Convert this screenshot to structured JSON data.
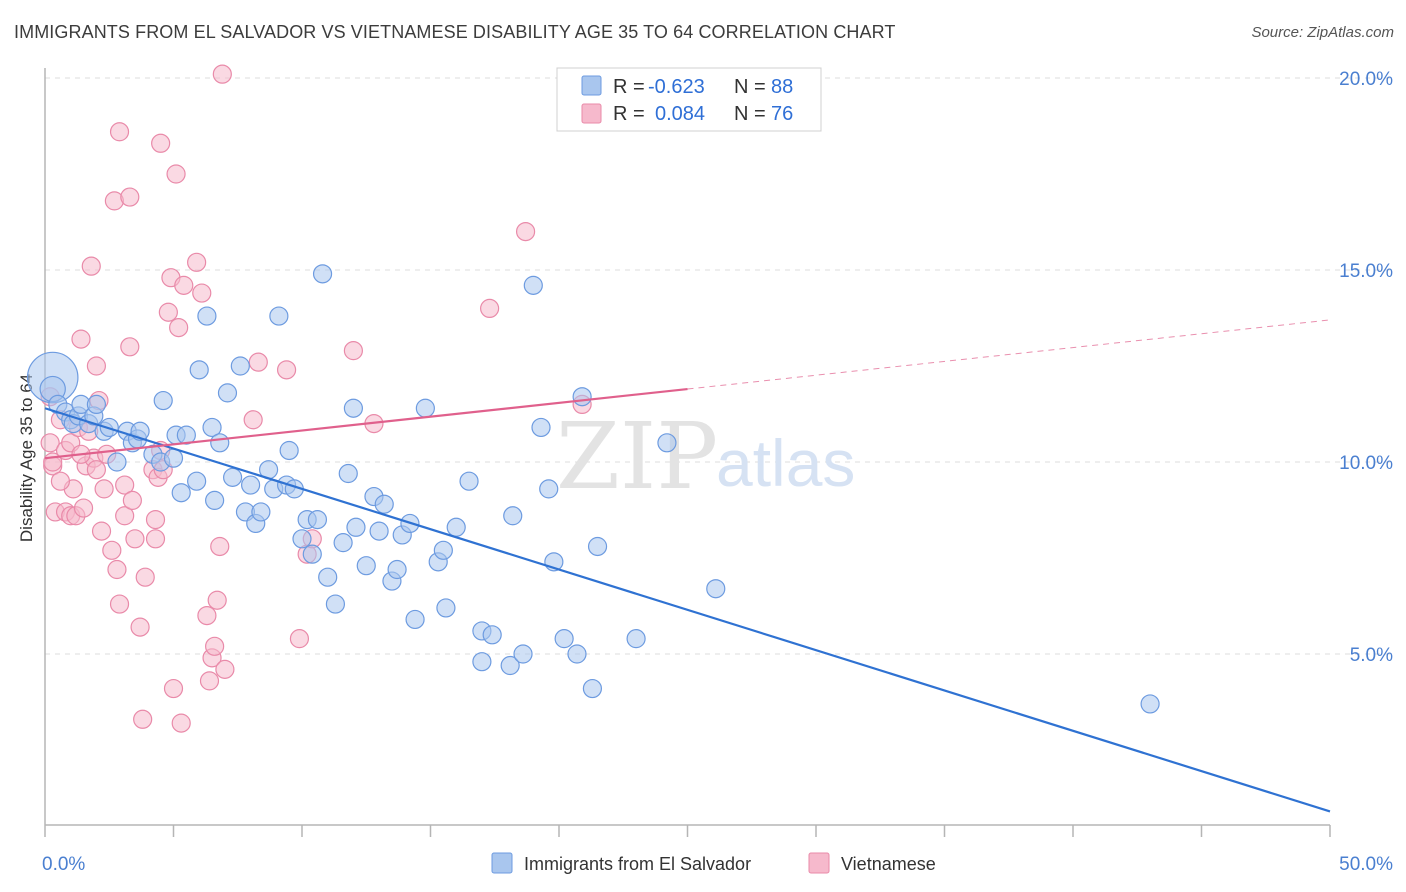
{
  "header": {
    "title": "IMMIGRANTS FROM EL SALVADOR VS VIETNAMESE DISABILITY AGE 35 TO 64 CORRELATION CHART",
    "source": "Source: ZipAtlas.com"
  },
  "watermark": {
    "zip": "ZIP",
    "atlas": "atlas"
  },
  "legend": {
    "rows": [
      {
        "r_label": "R =",
        "r_value": "-0.623",
        "n_label": "N =",
        "n_value": "88"
      },
      {
        "r_label": "R =",
        "r_value": "0.084",
        "n_label": "N =",
        "n_value": "76"
      }
    ]
  },
  "bottom_legend": {
    "items": [
      "Immigrants from El Salvador",
      "Vietnamese"
    ]
  },
  "colors": {
    "blue_fill": "#a9c6ee",
    "blue_stroke": "#6d9be0",
    "blue_line": "#2f72d2",
    "pink_fill": "#f6b9cc",
    "pink_stroke": "#e98aa9",
    "pink_line": "#e0608c",
    "grid": "#dcdcdc",
    "axis": "#b5b5b5",
    "tick_text": "#4a7fd0"
  },
  "chart_data": {
    "type": "scatter",
    "title": "IMMIGRANTS FROM EL SALVADOR VS VIETNAMESE DISABILITY AGE 35 TO 64 CORRELATION CHART",
    "xlabel": "",
    "ylabel": "Disability Age 35 to 64",
    "xlim": [
      0,
      50
    ],
    "ylim": [
      0,
      20.5
    ],
    "x_tick_labels": [
      "0.0%",
      "50.0%"
    ],
    "y_ticks": [
      5,
      10,
      15,
      20
    ],
    "y_tick_labels": [
      "5.0%",
      "10.0%",
      "15.0%",
      "20.0%"
    ],
    "grid": true,
    "legend_position": "top-center",
    "series": [
      {
        "name": "Immigrants from El Salvador",
        "color": "#a9c6ee",
        "R": -0.623,
        "N": 88,
        "trend": {
          "x": [
            0,
            50
          ],
          "y": [
            11.4,
            0.9
          ]
        },
        "points": [
          [
            0.3,
            12.2,
            2.8
          ],
          [
            0.3,
            11.9,
            1.4
          ],
          [
            0.5,
            11.5,
            1
          ],
          [
            0.8,
            11.3,
            1
          ],
          [
            1.0,
            11.1,
            1
          ],
          [
            1.1,
            11.0,
            1
          ],
          [
            1.3,
            11.2,
            1
          ],
          [
            1.4,
            11.5,
            1
          ],
          [
            1.7,
            11.0,
            1
          ],
          [
            1.9,
            11.2,
            1
          ],
          [
            2.0,
            11.5,
            1
          ],
          [
            2.3,
            10.8,
            1
          ],
          [
            2.5,
            10.9,
            1
          ],
          [
            2.8,
            10.0,
            1
          ],
          [
            3.2,
            10.8,
            1
          ],
          [
            3.4,
            10.5,
            1
          ],
          [
            3.6,
            10.6,
            1
          ],
          [
            3.7,
            10.8,
            1
          ],
          [
            4.2,
            10.2,
            1
          ],
          [
            4.5,
            10.0,
            1
          ],
          [
            4.6,
            11.6,
            1
          ],
          [
            5.0,
            10.1,
            1
          ],
          [
            5.1,
            10.7,
            1
          ],
          [
            5.3,
            9.2,
            1
          ],
          [
            5.5,
            10.7,
            1
          ],
          [
            5.9,
            9.5,
            1
          ],
          [
            6.0,
            12.4,
            1
          ],
          [
            6.3,
            13.8,
            1
          ],
          [
            6.5,
            10.9,
            1
          ],
          [
            6.6,
            9.0,
            1
          ],
          [
            6.8,
            10.5,
            1
          ],
          [
            7.1,
            11.8,
            1
          ],
          [
            7.3,
            9.6,
            1
          ],
          [
            7.6,
            12.5,
            1
          ],
          [
            7.8,
            8.7,
            1
          ],
          [
            8.0,
            9.4,
            1
          ],
          [
            8.2,
            8.4,
            1
          ],
          [
            8.4,
            8.7,
            1
          ],
          [
            8.7,
            9.8,
            1
          ],
          [
            8.9,
            9.3,
            1
          ],
          [
            9.1,
            13.8,
            1
          ],
          [
            9.4,
            9.4,
            1
          ],
          [
            9.5,
            10.3,
            1
          ],
          [
            9.7,
            9.3,
            1
          ],
          [
            10.0,
            8.0,
            1
          ],
          [
            10.2,
            8.5,
            1
          ],
          [
            10.4,
            7.6,
            1
          ],
          [
            10.6,
            8.5,
            1
          ],
          [
            10.8,
            14.9,
            1
          ],
          [
            11.0,
            7.0,
            1
          ],
          [
            11.3,
            6.3,
            1
          ],
          [
            11.6,
            7.9,
            1
          ],
          [
            11.8,
            9.7,
            1
          ],
          [
            12.1,
            8.3,
            1
          ],
          [
            12.0,
            11.4,
            1
          ],
          [
            12.5,
            7.3,
            1
          ],
          [
            12.8,
            9.1,
            1
          ],
          [
            13.0,
            8.2,
            1
          ],
          [
            13.2,
            8.9,
            1
          ],
          [
            13.5,
            6.9,
            1
          ],
          [
            13.7,
            7.2,
            1
          ],
          [
            13.9,
            8.1,
            1
          ],
          [
            14.2,
            8.4,
            1
          ],
          [
            14.4,
            5.9,
            1
          ],
          [
            14.8,
            11.4,
            1
          ],
          [
            15.3,
            7.4,
            1
          ],
          [
            15.5,
            7.7,
            1
          ],
          [
            15.6,
            6.2,
            1
          ],
          [
            16.0,
            8.3,
            1
          ],
          [
            16.5,
            9.5,
            1
          ],
          [
            17.0,
            5.6,
            1
          ],
          [
            17.0,
            4.8,
            1
          ],
          [
            17.4,
            5.5,
            1
          ],
          [
            18.1,
            4.7,
            1
          ],
          [
            18.2,
            8.6,
            1
          ],
          [
            18.6,
            5.0,
            1
          ],
          [
            19.0,
            14.6,
            1
          ],
          [
            19.6,
            9.3,
            1
          ],
          [
            19.3,
            10.9,
            1
          ],
          [
            19.8,
            7.4,
            1
          ],
          [
            20.2,
            5.4,
            1
          ],
          [
            20.7,
            5.0,
            1
          ],
          [
            20.9,
            11.7,
            1
          ],
          [
            21.3,
            4.1,
            1
          ],
          [
            21.5,
            7.8,
            1
          ],
          [
            23.0,
            5.4,
            1
          ],
          [
            24.2,
            10.5,
            1
          ],
          [
            26.1,
            6.7,
            1
          ],
          [
            43.0,
            3.7,
            1
          ]
        ]
      },
      {
        "name": "Vietnamese",
        "color": "#f6b9cc",
        "R": 0.084,
        "N": 76,
        "trend": {
          "x": [
            0,
            25
          ],
          "y": [
            10.1,
            11.9
          ]
        },
        "trend_dashed": {
          "x": [
            25,
            50
          ],
          "y": [
            11.9,
            13.7
          ]
        },
        "points": [
          [
            0.2,
            11.7,
            1
          ],
          [
            0.2,
            10.5,
            1
          ],
          [
            0.3,
            9.9,
            1
          ],
          [
            0.3,
            10.0,
            1
          ],
          [
            0.4,
            8.7,
            1
          ],
          [
            0.6,
            11.1,
            1
          ],
          [
            0.8,
            10.3,
            1
          ],
          [
            0.8,
            8.7,
            1
          ],
          [
            1.0,
            8.6,
            1
          ],
          [
            1.0,
            10.5,
            1
          ],
          [
            1.1,
            9.3,
            1
          ],
          [
            1.2,
            8.6,
            1
          ],
          [
            1.3,
            10.9,
            1
          ],
          [
            1.4,
            13.2,
            1
          ],
          [
            1.5,
            8.8,
            1
          ],
          [
            1.6,
            9.9,
            1
          ],
          [
            1.7,
            10.8,
            1
          ],
          [
            1.8,
            15.1,
            1
          ],
          [
            1.9,
            10.1,
            1
          ],
          [
            2.0,
            9.8,
            1
          ],
          [
            2.0,
            12.5,
            1
          ],
          [
            2.1,
            11.6,
            1
          ],
          [
            2.2,
            8.2,
            1
          ],
          [
            2.3,
            9.3,
            1
          ],
          [
            2.4,
            10.2,
            1
          ],
          [
            2.6,
            7.7,
            1
          ],
          [
            2.7,
            16.8,
            1
          ],
          [
            2.8,
            7.2,
            1
          ],
          [
            2.9,
            18.6,
            1
          ],
          [
            2.9,
            6.3,
            1
          ],
          [
            3.1,
            8.6,
            1
          ],
          [
            3.1,
            9.4,
            1
          ],
          [
            3.3,
            16.9,
            1
          ],
          [
            3.4,
            9.0,
            1
          ],
          [
            3.5,
            8.0,
            1
          ],
          [
            3.7,
            5.7,
            1
          ],
          [
            3.8,
            3.3,
            1
          ],
          [
            3.9,
            7.0,
            1
          ],
          [
            4.2,
            9.8,
            1
          ],
          [
            4.3,
            8.5,
            1
          ],
          [
            4.3,
            8.0,
            1
          ],
          [
            4.4,
            9.6,
            1
          ],
          [
            4.5,
            10.3,
            1
          ],
          [
            4.5,
            18.3,
            1
          ],
          [
            4.6,
            9.8,
            1
          ],
          [
            4.8,
            13.9,
            1
          ],
          [
            4.9,
            14.8,
            1
          ],
          [
            5.0,
            4.1,
            1
          ],
          [
            5.1,
            17.5,
            1
          ],
          [
            5.2,
            13.5,
            1
          ],
          [
            5.3,
            3.2,
            1
          ],
          [
            5.4,
            14.6,
            1
          ],
          [
            5.9,
            15.2,
            1
          ],
          [
            6.1,
            14.4,
            1
          ],
          [
            6.3,
            6.0,
            1
          ],
          [
            6.4,
            4.3,
            1
          ],
          [
            6.5,
            4.9,
            1
          ],
          [
            6.6,
            5.2,
            1
          ],
          [
            6.7,
            6.4,
            1
          ],
          [
            6.8,
            7.8,
            1
          ],
          [
            6.9,
            20.1,
            1
          ],
          [
            7.0,
            4.6,
            1
          ],
          [
            8.1,
            11.1,
            1
          ],
          [
            8.3,
            12.6,
            1
          ],
          [
            9.4,
            12.4,
            1
          ],
          [
            9.9,
            5.4,
            1
          ],
          [
            10.2,
            7.6,
            1
          ],
          [
            10.4,
            8.0,
            1
          ],
          [
            12.0,
            12.9,
            1
          ],
          [
            12.8,
            11.0,
            1
          ],
          [
            17.3,
            14.0,
            1
          ],
          [
            18.7,
            16.0,
            1
          ],
          [
            20.9,
            11.5,
            1
          ],
          [
            3.3,
            13.0,
            1
          ],
          [
            0.6,
            9.5,
            1
          ],
          [
            1.4,
            10.2,
            1
          ]
        ]
      }
    ]
  }
}
